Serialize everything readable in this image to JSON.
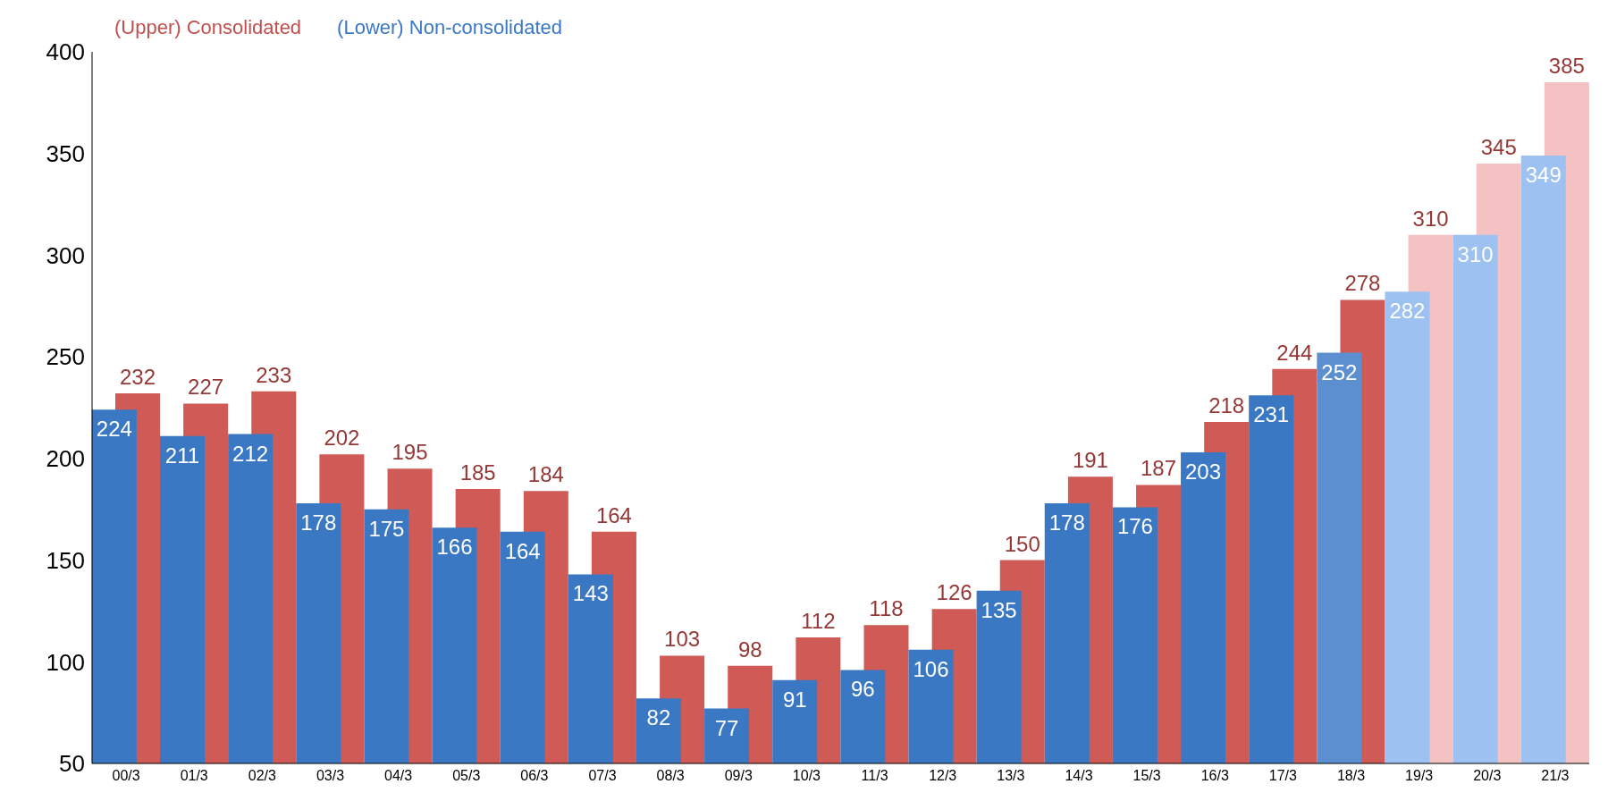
{
  "chart_data": {
    "type": "bar",
    "categories": [
      "00/3",
      "01/3",
      "02/3",
      "03/3",
      "04/3",
      "05/3",
      "06/3",
      "07/3",
      "08/3",
      "09/3",
      "10/3",
      "11/3",
      "12/3",
      "13/3",
      "14/3",
      "15/3",
      "16/3",
      "17/3",
      "18/3",
      "19/3",
      "20/3",
      "21/3"
    ],
    "series": [
      {
        "name": "(Upper) Consolidated",
        "color": "#c0504d",
        "colors": [
          "#d05a55",
          "#d05a55",
          "#d05a55",
          "#d05a55",
          "#d05a55",
          "#d05a55",
          "#d05a55",
          "#d05a55",
          "#d05a55",
          "#d05a55",
          "#d05a55",
          "#d05a55",
          "#d05a55",
          "#d05a55",
          "#d05a55",
          "#d05a55",
          "#d05a55",
          "#d05a55",
          "#d05a55",
          "#f4c2c2",
          "#f4c2c2",
          "#f4c2c2"
        ],
        "values": [
          232,
          227,
          233,
          202,
          195,
          185,
          184,
          164,
          103,
          98,
          112,
          118,
          126,
          150,
          191,
          187,
          218,
          244,
          278,
          310,
          345,
          385
        ]
      },
      {
        "name": "(Lower) Non-consolidated",
        "color": "#3b78c4",
        "colors": [
          "#3b78c4",
          "#3b78c4",
          "#3b78c4",
          "#3b78c4",
          "#3b78c4",
          "#3b78c4",
          "#3b78c4",
          "#3b78c4",
          "#3b78c4",
          "#3b78c4",
          "#3b78c4",
          "#3b78c4",
          "#3b78c4",
          "#3b78c4",
          "#3b78c4",
          "#3b78c4",
          "#3b78c4",
          "#3b78c4",
          "#5b8fd0",
          "#9dc1f0",
          "#9dc1f0",
          "#9dc1f0"
        ],
        "values": [
          224,
          211,
          212,
          178,
          175,
          166,
          164,
          143,
          82,
          77,
          91,
          96,
          106,
          135,
          178,
          176,
          203,
          231,
          252,
          282,
          310,
          349
        ]
      }
    ],
    "data_labels": true,
    "ylim": [
      50,
      400
    ],
    "yticks": [
      50,
      100,
      150,
      200,
      250,
      300,
      350,
      400
    ],
    "grid": false,
    "legend": "top left"
  }
}
